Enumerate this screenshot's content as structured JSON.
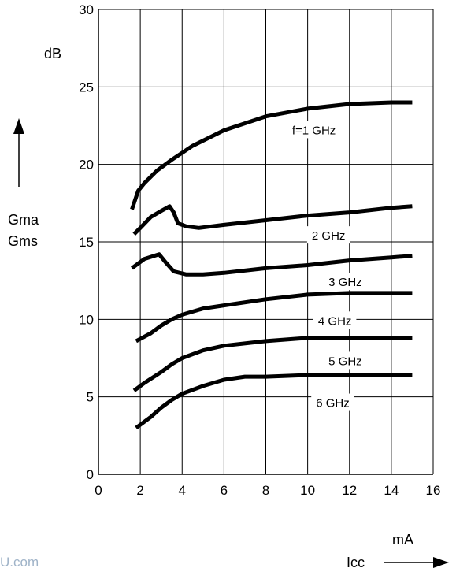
{
  "chart_data": {
    "type": "line",
    "title": "",
    "xlabel": "Icc",
    "xunit": "mA",
    "ylabel_lines": [
      "Gma",
      "Gms"
    ],
    "yunit": "dB",
    "xlim": [
      0,
      16
    ],
    "ylim": [
      0,
      30
    ],
    "xticks": [
      0,
      2,
      4,
      6,
      8,
      10,
      12,
      14,
      16
    ],
    "yticks": [
      0,
      5,
      10,
      15,
      20,
      25,
      30
    ],
    "grid": true,
    "series": [
      {
        "name": "f=1 GHz",
        "label_at": [
          10.3,
          22.2
        ],
        "x": [
          1.6,
          1.9,
          2.2,
          2.8,
          3.5,
          4.5,
          6,
          8,
          10,
          12,
          14,
          15
        ],
        "y": [
          17.1,
          18.3,
          18.8,
          19.6,
          20.3,
          21.2,
          22.2,
          23.1,
          23.6,
          23.9,
          24.0,
          24.0
        ]
      },
      {
        "name": "2 GHz",
        "label_at": [
          11.0,
          15.4
        ],
        "x": [
          1.7,
          2.0,
          2.5,
          3.0,
          3.4,
          3.6,
          3.8,
          4.2,
          4.8,
          6,
          8,
          10,
          12,
          14,
          15
        ],
        "y": [
          15.5,
          15.9,
          16.6,
          17.0,
          17.3,
          16.9,
          16.2,
          16.0,
          15.9,
          16.1,
          16.4,
          16.7,
          16.9,
          17.2,
          17.3
        ]
      },
      {
        "name": "3 GHz",
        "label_at": [
          11.8,
          12.4
        ],
        "x": [
          1.6,
          2.2,
          2.9,
          3.2,
          3.6,
          4.2,
          5,
          6,
          8,
          10,
          12,
          14,
          15
        ],
        "y": [
          13.3,
          13.9,
          14.2,
          13.7,
          13.1,
          12.9,
          12.9,
          13.0,
          13.3,
          13.5,
          13.8,
          14.0,
          14.1
        ]
      },
      {
        "name": "4 GHz",
        "label_at": [
          11.3,
          9.9
        ],
        "x": [
          1.8,
          2.5,
          3.0,
          3.5,
          4.0,
          5,
          6,
          8,
          10,
          12,
          14,
          15
        ],
        "y": [
          8.6,
          9.1,
          9.6,
          10.0,
          10.3,
          10.7,
          10.9,
          11.3,
          11.6,
          11.7,
          11.7,
          11.7
        ]
      },
      {
        "name": "5 GHz",
        "label_at": [
          11.8,
          7.3
        ],
        "x": [
          1.7,
          2.2,
          3.0,
          3.5,
          4.0,
          5,
          6,
          8,
          10,
          12,
          14,
          15
        ],
        "y": [
          5.4,
          5.9,
          6.6,
          7.1,
          7.5,
          8.0,
          8.3,
          8.6,
          8.8,
          8.8,
          8.8,
          8.8
        ]
      },
      {
        "name": "6 GHz",
        "label_at": [
          11.2,
          4.6
        ],
        "x": [
          1.8,
          2.5,
          3.0,
          3.5,
          4.0,
          5,
          6,
          7,
          8,
          10,
          12,
          14,
          15
        ],
        "y": [
          3.0,
          3.7,
          4.3,
          4.8,
          5.2,
          5.7,
          6.1,
          6.3,
          6.3,
          6.4,
          6.4,
          6.4,
          6.4
        ]
      }
    ]
  },
  "watermark": "U.com"
}
